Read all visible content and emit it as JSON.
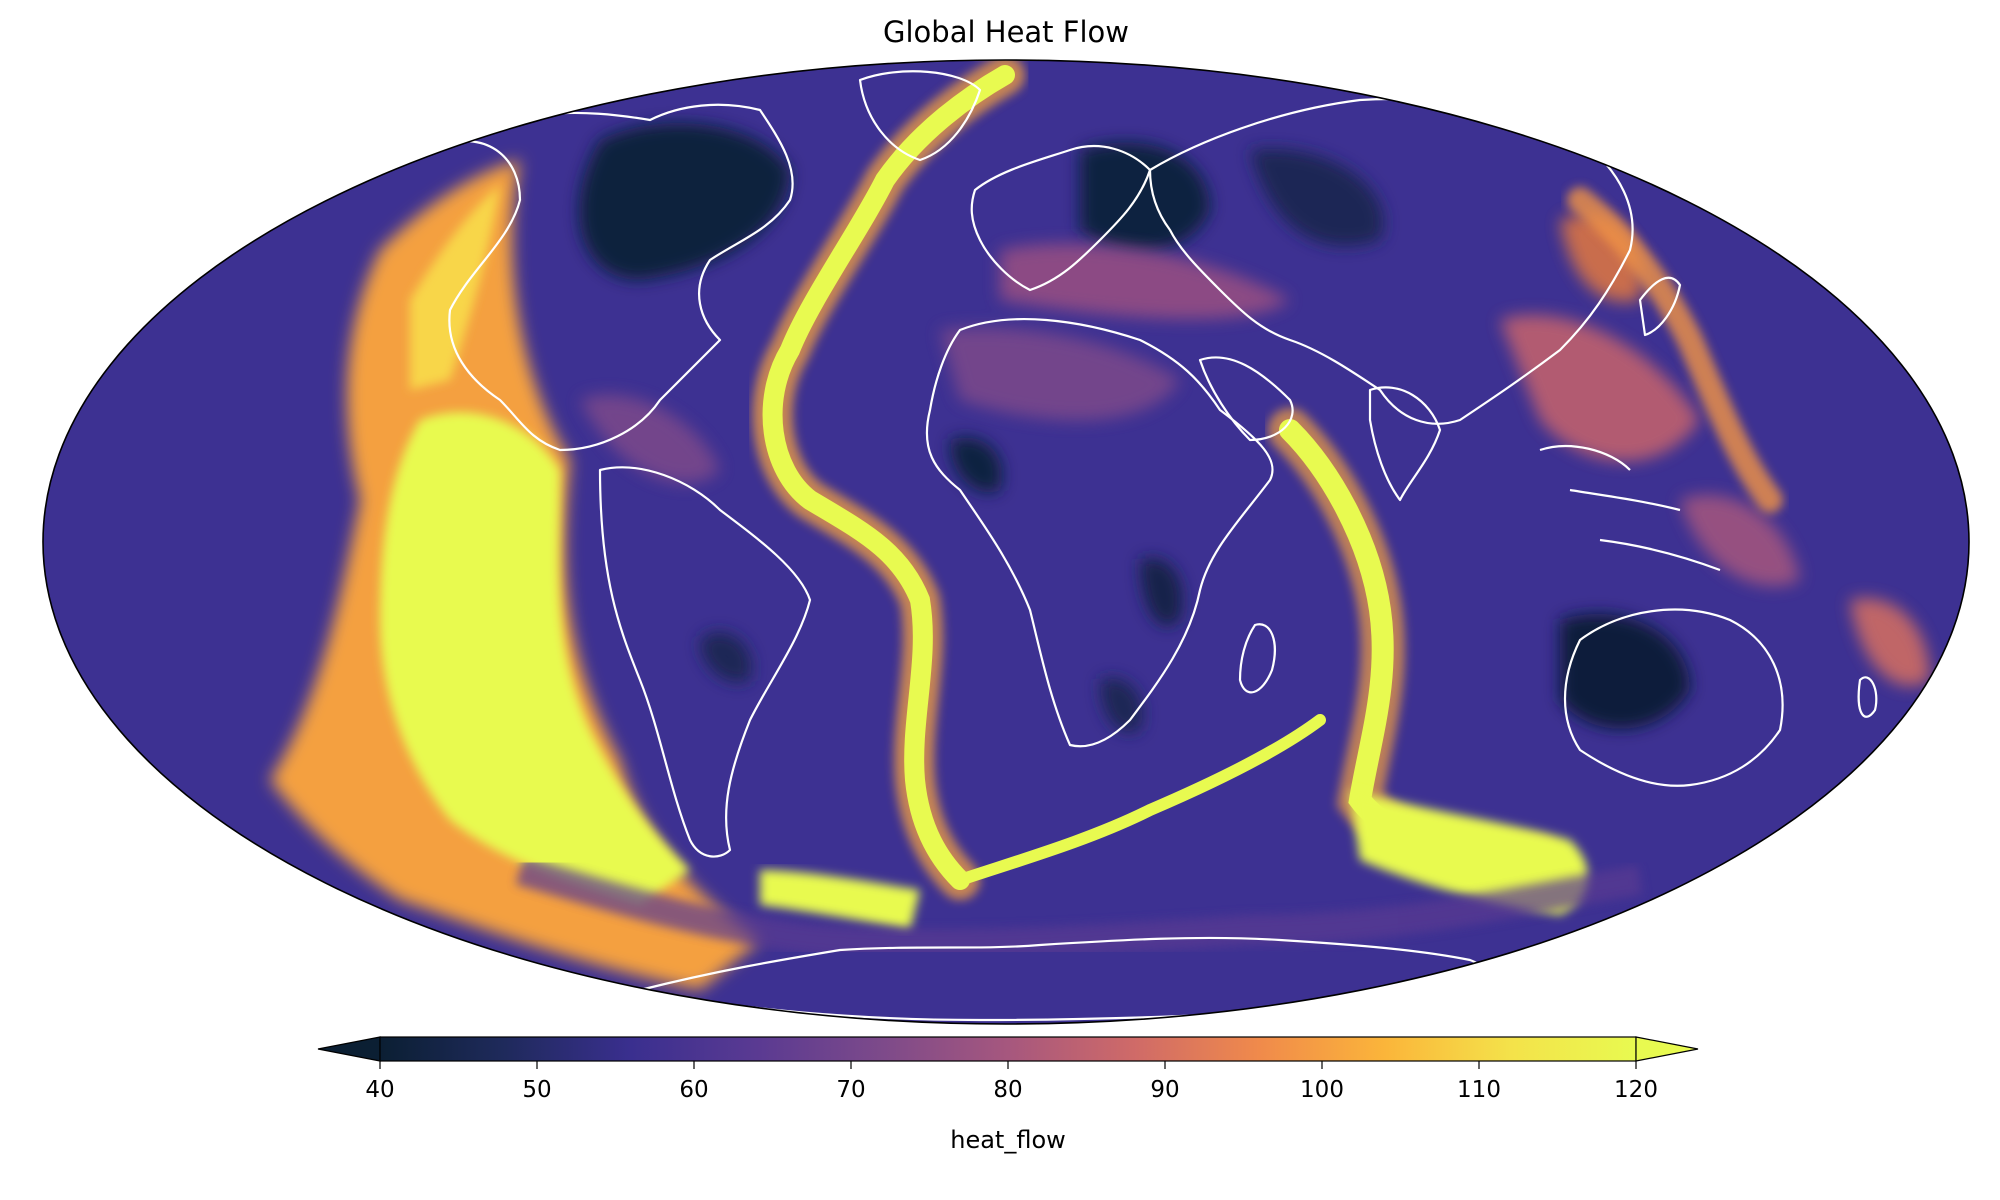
{
  "figure": {
    "title": "Global Heat Flow"
  },
  "map": {
    "projection": "mollweide",
    "field": "heat_flow",
    "coastline_color": "#ffffff",
    "outline_color": "#000000"
  },
  "colorbar": {
    "label": "heat_flow",
    "colormap": "plasma-like (dark navy to yellow)",
    "min": 40,
    "max": 120,
    "extend": "both",
    "ticks": [
      "40",
      "50",
      "60",
      "70",
      "80",
      "90",
      "100",
      "110",
      "120"
    ],
    "colors": [
      "#0b1f33",
      "#1f2a5c",
      "#3a2f8f",
      "#5a3a92",
      "#7d4a8a",
      "#a6577e",
      "#cf6a68",
      "#f08a4b",
      "#fbb53a",
      "#f4e24a",
      "#e8fa50"
    ]
  }
}
